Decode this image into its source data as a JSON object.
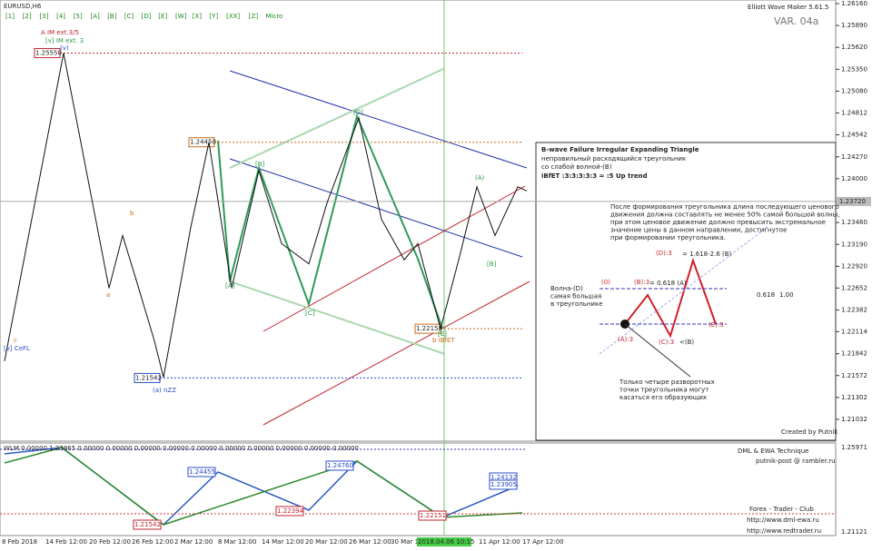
{
  "header": {
    "symbol": "EURUSD,H6",
    "indicator": "Elliott Wave Maker 5.61.5",
    "variant": "VAR. 04a"
  },
  "toolbar": [
    "[1]",
    "[2]",
    "[3]",
    "[4]",
    "[5]",
    "[A]",
    "[B]",
    "[C]",
    "[D]",
    "[E]",
    "[W]",
    "[X]",
    "[Y]",
    "[XX]",
    "[Z]",
    "Micro"
  ],
  "price_axis": {
    "ticks": [
      {
        "value": 1.2616,
        "label": "1.26160"
      },
      {
        "value": 1.2589,
        "label": "1.25890"
      },
      {
        "value": 1.2562,
        "label": "1.25620"
      },
      {
        "value": 1.2535,
        "label": "1.25350"
      },
      {
        "value": 1.2508,
        "label": "1.25080"
      },
      {
        "value": 1.24812,
        "label": "1.24812"
      },
      {
        "value": 1.24542,
        "label": "1.24542"
      },
      {
        "value": 1.2427,
        "label": "1.24270"
      },
      {
        "value": 1.24,
        "label": "1.24000"
      },
      {
        "value": 1.2346,
        "label": "1.23460"
      },
      {
        "value": 1.2319,
        "label": "1.23190"
      },
      {
        "value": 1.2292,
        "label": "1.22920"
      },
      {
        "value": 1.22652,
        "label": "1.22652"
      },
      {
        "value": 1.22382,
        "label": "1.22382"
      },
      {
        "value": 1.22114,
        "label": "1.22114"
      },
      {
        "value": 1.21842,
        "label": "1.21842"
      },
      {
        "value": 1.21572,
        "label": "1.21572"
      },
      {
        "value": 1.21302,
        "label": "1.21302"
      },
      {
        "value": 1.21032,
        "label": "1.21032"
      }
    ],
    "current": {
      "value": 1.2372,
      "label": "1.23720"
    }
  },
  "price_tags": [
    {
      "value": 1.2555,
      "label": "1.25550"
    },
    {
      "value": 1.2445,
      "label": "1.24450"
    },
    {
      "value": 1.2215,
      "label": "1.22150"
    },
    {
      "value": 1.21542,
      "label": "1.21542"
    }
  ],
  "price_series": {
    "bars": [
      1,
      14,
      24,
      27,
      30,
      34,
      36,
      42,
      46,
      51,
      57,
      62,
      68,
      72,
      79,
      84,
      89,
      92,
      97,
      101,
      105,
      109,
      114,
      116
    ],
    "values": [
      1.2175,
      1.2555,
      1.2265,
      1.233,
      1.2275,
      1.22,
      1.2155,
      1.234,
      1.2445,
      1.2265,
      1.241,
      1.232,
      1.2295,
      1.237,
      1.2475,
      1.235,
      1.23,
      1.232,
      1.2215,
      1.23,
      1.239,
      1.233,
      1.239,
      1.2385
    ]
  },
  "annotations": {
    "a_im": "A IM ext.3/5",
    "v_im": "[v] IM ext. 3",
    "v": "(v)",
    "a_nzz": "(a) nZZ",
    "v_cefl": "[v] CeFL",
    "ibfet": "b iBfET",
    "a": "a",
    "b": "b",
    "c": "c",
    "A": "[A]",
    "B": "[B]",
    "C": "[C]",
    "D": "[D]",
    "E": "[E]",
    "A_": "(A)",
    "B_": "[B]"
  },
  "info_box": {
    "title": "B-wave Failure Irregular Expanding Triangle",
    "line1": "неправильный расходящийся треугольник",
    "line2": "со слабой волной-(B)",
    "formula": "iBfET :3:3:3:3:3 = :5 Up trend",
    "text": [
      "После формирования треугольника длина последующего ценового",
      "движения должна составлять не менее 50% самой большой волны,",
      "при этом ценовое движение должно превысить экстремальное",
      "значение цены в данном направлении, достигнутое",
      "при формировании треугольника."
    ],
    "wave_d": [
      "Волна-(D)",
      "самая большая",
      "в треугольнике"
    ],
    "w0": "(0)",
    "wA": "(A):3",
    "wB": "(B):3",
    "wC": "(C):3",
    "wD": "(D):3",
    "wE": "(E):3",
    "rB": "= 0.618 (A)",
    "rD": "= 1.618-2.6 (B)",
    "rC": "<(B)",
    "r618": "0.618",
    "r100": "1.00",
    "note": [
      "Только четыре разворотных",
      "точки треугольника могут",
      "касаться его образующих"
    ],
    "credit": "Created by Putnik"
  },
  "lower_panel": {
    "header": "WLM 0.00000 1.23865 0.00000 0.00000 0.00000 0.00000 0.00000 0.00000 0.00000 0.00000 0.00000 0.00000",
    "tags": [
      "1.24455",
      "1.24760",
      "1.22394",
      "1.24132",
      "1.23905",
      "1.22151",
      "1.21542"
    ],
    "axis": [
      "1.25971",
      "1.21121"
    ],
    "credits": [
      "DML & EWA Technique",
      "putnik-post @ rambler.ru",
      "Forex - Trader - Club",
      "http://www.dml-ewa.ru",
      "http://www.redtrader.ru"
    ]
  },
  "date_axis": [
    "8 Feb 2018",
    "14 Feb 12:00",
    "20 Feb 12:00",
    "26 Feb 12:00",
    "2 Mar 12:00",
    "8 Mar 12:00",
    "14 Mar 12:00",
    "20 Mar 12:00",
    "26 Mar 12:00",
    "30 Mar 12:00",
    "2018.04.06 10:15",
    "11 Apr 12:00",
    "17 Apr 12:00"
  ]
}
